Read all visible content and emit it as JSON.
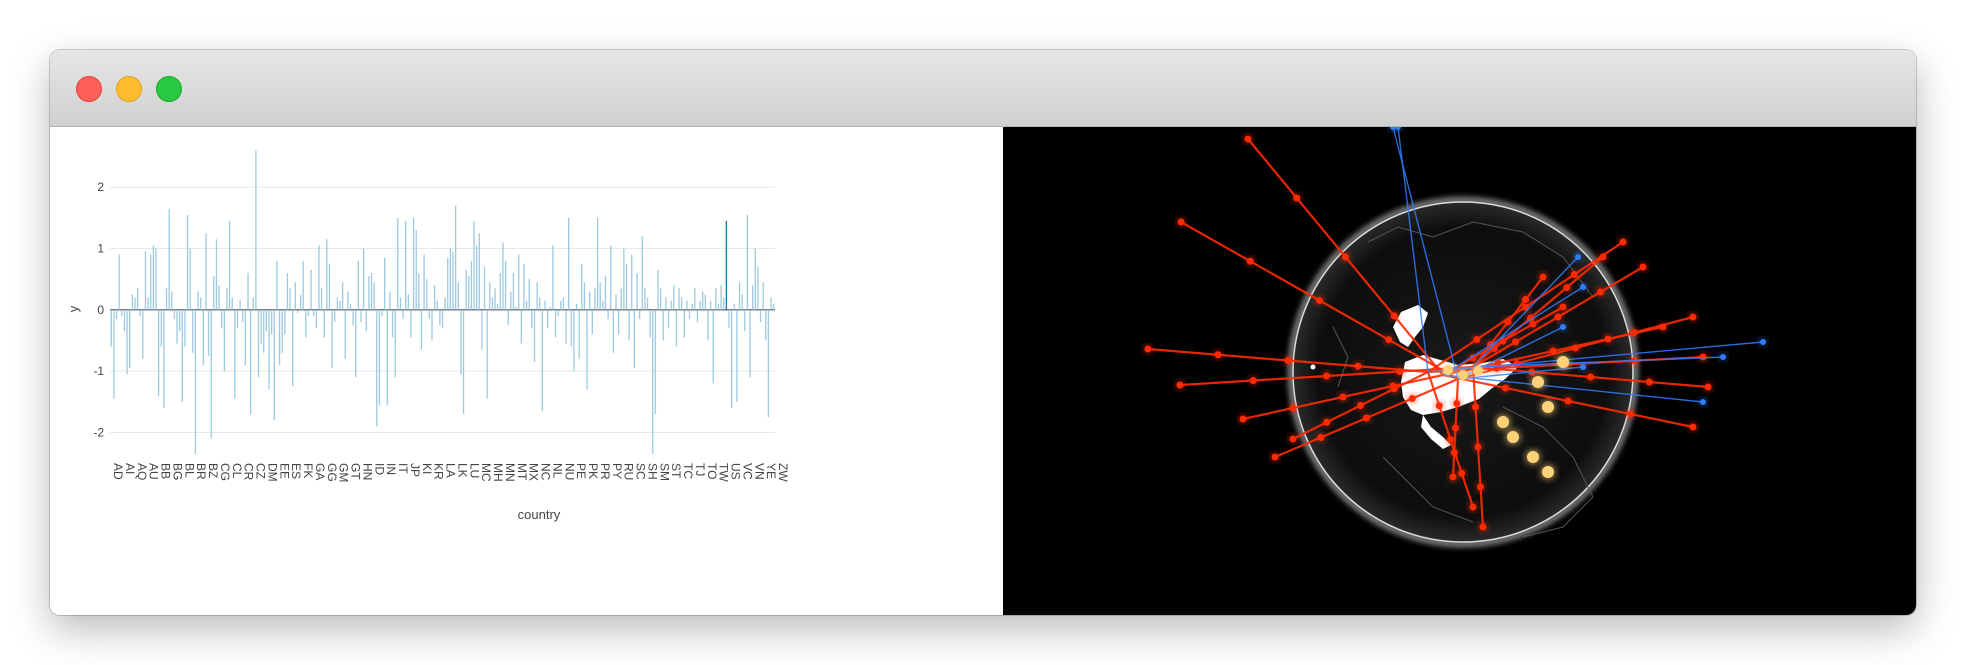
{
  "window": {
    "controls": [
      {
        "name": "close",
        "color": "#fe5f57"
      },
      {
        "name": "minimize",
        "color": "#febc2e"
      },
      {
        "name": "maximize",
        "color": "#28c840"
      }
    ]
  },
  "chart_data": {
    "type": "bar",
    "xlabel": "country",
    "ylabel": "y",
    "ylim": [
      -2.4,
      2.9
    ],
    "yticks": [
      2,
      1,
      0,
      -1,
      -2
    ],
    "grid": true,
    "bar_color": "#9ecae1",
    "highlight_color": "#1f77b4",
    "highlight_category": "US",
    "tick_labels": [
      "AD",
      "AI",
      "AQ",
      "AU",
      "BB",
      "BG",
      "BL",
      "BR",
      "BZ",
      "CG",
      "CL",
      "CR",
      "CZ",
      "DM",
      "EE",
      "ES",
      "FK",
      "GA",
      "GG",
      "GM",
      "GT",
      "HN",
      "ID",
      "IN",
      "IT",
      "JP",
      "KI",
      "KR",
      "LA",
      "LK",
      "LU",
      "MC",
      "MH",
      "MN",
      "MT",
      "MX",
      "NC",
      "NL",
      "NU",
      "PE",
      "PK",
      "PR",
      "PY",
      "RU",
      "SC",
      "SH",
      "SM",
      "ST",
      "TC",
      "TJ",
      "TO",
      "TW",
      "US",
      "VC",
      "VN",
      "YE",
      "ZW"
    ],
    "values": [
      -0.6,
      -1.45,
      -0.15,
      0.9,
      -0.1,
      -0.35,
      -1.05,
      -0.95,
      0.25,
      0.2,
      0.35,
      -0.1,
      -0.8,
      0.95,
      0.2,
      0.9,
      1.05,
      1.0,
      -1.4,
      -0.6,
      -1.6,
      0.35,
      1.65,
      0.3,
      -0.15,
      -0.55,
      -0.35,
      -1.5,
      -0.6,
      1.55,
      1.0,
      -0.7,
      -2.35,
      0.3,
      0.2,
      -0.9,
      1.25,
      -0.75,
      -2.1,
      0.55,
      1.15,
      0.4,
      -0.3,
      -1.0,
      0.35,
      1.45,
      0.2,
      -1.45,
      -0.3,
      0.15,
      -0.2,
      -0.9,
      0.6,
      -1.7,
      0.2,
      2.6,
      -1.1,
      -0.55,
      -0.7,
      -0.35,
      -1.3,
      -0.4,
      -1.8,
      0.8,
      -0.9,
      -0.7,
      -0.4,
      0.6,
      0.35,
      -1.25,
      0.45,
      -0.05,
      0.25,
      0.8,
      -0.45,
      -0.1,
      0.65,
      -0.1,
      -0.3,
      1.05,
      0.35,
      -0.45,
      1.15,
      0.75,
      -0.95,
      -0.2,
      0.2,
      0.15,
      0.45,
      -0.8,
      0.3,
      0.1,
      -0.25,
      -1.1,
      0.8,
      -0.2,
      1.0,
      -0.35,
      0.55,
      0.6,
      0.45,
      -1.9,
      -1.55,
      -0.1,
      0.85,
      -1.55,
      0.3,
      -0.45,
      -1.1,
      1.5,
      0.2,
      -0.15,
      1.45,
      0.25,
      -0.45,
      1.5,
      1.3,
      0.6,
      -0.65,
      0.9,
      0.5,
      -0.15,
      -0.5,
      0.4,
      0.15,
      -0.25,
      -0.3,
      0.2,
      0.85,
      1.0,
      0.95,
      1.7,
      0.45,
      -1.05,
      -1.7,
      0.65,
      0.55,
      0.8,
      1.45,
      1.05,
      1.25,
      -0.65,
      0.7,
      -1.45,
      0.45,
      0.2,
      0.35,
      0.1,
      0.6,
      1.1,
      0.8,
      -0.25,
      0.3,
      0.6,
      0.05,
      0.9,
      -0.55,
      0.75,
      0.15,
      0.5,
      -0.3,
      -0.85,
      0.45,
      0.2,
      -1.65,
      0.15,
      -0.3,
      0.05,
      1.05,
      -0.45,
      -0.1,
      0.15,
      0.2,
      -0.55,
      1.5,
      -0.6,
      -1.0,
      0.1,
      -0.8,
      0.75,
      0.45,
      -1.3,
      0.3,
      -0.4,
      0.35,
      1.5,
      0.45,
      0.15,
      0.55,
      -0.15,
      1.05,
      -0.7,
      0.25,
      -0.4,
      0.35,
      1.0,
      0.75,
      -0.5,
      0.9,
      -0.95,
      0.6,
      -0.15,
      1.2,
      0.35,
      0.2,
      -0.45,
      -2.35,
      -1.7,
      0.65,
      0.35,
      -0.5,
      0.2,
      -0.3,
      0.15,
      0.4,
      -0.6,
      0.35,
      0.2,
      -0.45,
      0.15,
      -0.15,
      0.1,
      0.35,
      -0.2,
      0.15,
      0.3,
      0.25,
      -0.5,
      0.15,
      -1.2,
      0.35,
      0.1,
      0.4,
      0.2,
      1.45,
      -0.3,
      -1.6,
      0.1,
      -1.5,
      0.45,
      0.25,
      -0.35,
      1.55,
      -1.1,
      0.4,
      1.0,
      0.7,
      -0.2,
      0.45,
      -0.5,
      -1.75,
      0.2,
      0.1
    ]
  },
  "globe_panel": {
    "background": "#000000",
    "arc_colors": [
      "#ff2a00",
      "#2f7dff",
      "#ffd27a"
    ]
  }
}
